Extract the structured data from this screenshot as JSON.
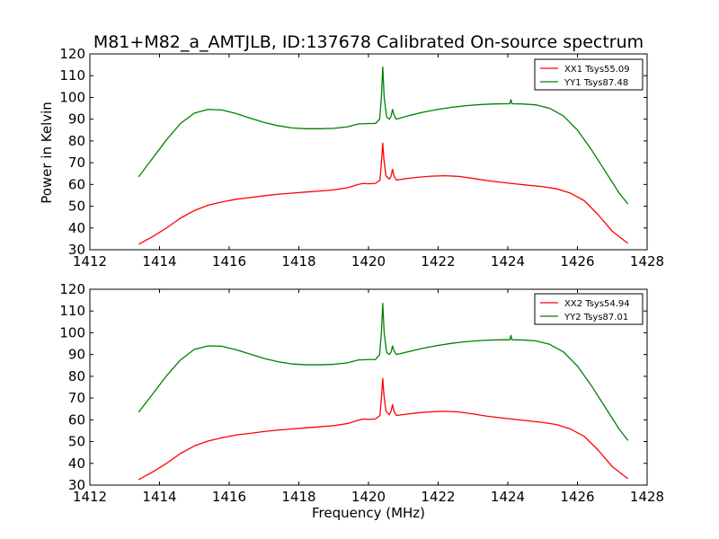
{
  "chart_data": {
    "type": "line",
    "title": "M81+M82_a_AMTJLB, ID:137678 Calibrated On-source spectrum",
    "xlabel": "Frequency (MHz)",
    "ylabel": "Power in Kelvin",
    "xlim": [
      1412,
      1428
    ],
    "xticks": [
      1412,
      1414,
      1416,
      1418,
      1420,
      1422,
      1424,
      1426,
      1428
    ],
    "panels": [
      {
        "ylim": [
          30,
          120
        ],
        "yticks": [
          30,
          40,
          50,
          60,
          70,
          80,
          90,
          100,
          110,
          120
        ],
        "legend_position": "top-right",
        "series": [
          {
            "name": "XX1 Tsys55.09",
            "color": "#ff0000",
            "points": [
              [
                1413.4,
                32.5
              ],
              [
                1413.8,
                36
              ],
              [
                1414.2,
                40
              ],
              [
                1414.6,
                44.5
              ],
              [
                1415.0,
                48
              ],
              [
                1415.4,
                50.5
              ],
              [
                1415.8,
                52
              ],
              [
                1416.2,
                53.2
              ],
              [
                1416.6,
                54
              ],
              [
                1417.0,
                54.8
              ],
              [
                1417.4,
                55.5
              ],
              [
                1417.8,
                56
              ],
              [
                1418.2,
                56.5
              ],
              [
                1418.6,
                57
              ],
              [
                1419.0,
                57.5
              ],
              [
                1419.4,
                58.5
              ],
              [
                1419.7,
                60
              ],
              [
                1419.85,
                60.5
              ],
              [
                1420.0,
                60.3
              ],
              [
                1420.2,
                60.5
              ],
              [
                1420.33,
                62
              ],
              [
                1420.38,
                72
              ],
              [
                1420.41,
                79
              ],
              [
                1420.44,
                72
              ],
              [
                1420.5,
                64
              ],
              [
                1420.6,
                62.5
              ],
              [
                1420.65,
                64
              ],
              [
                1420.69,
                67
              ],
              [
                1420.73,
                64
              ],
              [
                1420.8,
                62
              ],
              [
                1421.0,
                62.5
              ],
              [
                1421.4,
                63.3
              ],
              [
                1421.8,
                63.8
              ],
              [
                1422.2,
                64
              ],
              [
                1422.6,
                63.7
              ],
              [
                1423.0,
                62.8
              ],
              [
                1423.4,
                61.8
              ],
              [
                1423.8,
                61
              ],
              [
                1424.2,
                60.3
              ],
              [
                1424.6,
                59.6
              ],
              [
                1425.0,
                59
              ],
              [
                1425.4,
                58
              ],
              [
                1425.8,
                56
              ],
              [
                1426.2,
                52.5
              ],
              [
                1426.6,
                46
              ],
              [
                1427.0,
                38.5
              ],
              [
                1427.4,
                33.5
              ],
              [
                1427.45,
                33
              ]
            ]
          },
          {
            "name": "YY1 Tsys87.48",
            "color": "#008000",
            "points": [
              [
                1413.4,
                63.5
              ],
              [
                1413.8,
                72
              ],
              [
                1414.2,
                80.5
              ],
              [
                1414.6,
                88
              ],
              [
                1415.0,
                92.8
              ],
              [
                1415.4,
                94.5
              ],
              [
                1415.8,
                94.2
              ],
              [
                1416.2,
                92.6
              ],
              [
                1416.6,
                90.5
              ],
              [
                1417.0,
                88.5
              ],
              [
                1417.4,
                87
              ],
              [
                1417.8,
                86
              ],
              [
                1418.2,
                85.6
              ],
              [
                1418.6,
                85.6
              ],
              [
                1419.0,
                85.8
              ],
              [
                1419.4,
                86.5
              ],
              [
                1419.7,
                87.8
              ],
              [
                1420.0,
                88
              ],
              [
                1420.2,
                88
              ],
              [
                1420.32,
                90
              ],
              [
                1420.37,
                100
              ],
              [
                1420.41,
                114
              ],
              [
                1420.45,
                100
              ],
              [
                1420.52,
                91
              ],
              [
                1420.6,
                90
              ],
              [
                1420.65,
                91.5
              ],
              [
                1420.69,
                94.5
              ],
              [
                1420.73,
                92
              ],
              [
                1420.8,
                90
              ],
              [
                1421.2,
                91.8
              ],
              [
                1421.6,
                93.3
              ],
              [
                1422.0,
                94.5
              ],
              [
                1422.4,
                95.5
              ],
              [
                1422.8,
                96.2
              ],
              [
                1423.2,
                96.7
              ],
              [
                1423.6,
                97
              ],
              [
                1424.0,
                97.1
              ],
              [
                1424.06,
                97.1
              ],
              [
                1424.09,
                99
              ],
              [
                1424.12,
                97.1
              ],
              [
                1424.4,
                97
              ],
              [
                1424.8,
                96.6
              ],
              [
                1425.2,
                95
              ],
              [
                1425.6,
                91.5
              ],
              [
                1426.0,
                85
              ],
              [
                1426.4,
                76
              ],
              [
                1426.8,
                66
              ],
              [
                1427.2,
                56
              ],
              [
                1427.45,
                51
              ]
            ]
          }
        ]
      },
      {
        "ylim": [
          30,
          120
        ],
        "yticks": [
          30,
          40,
          50,
          60,
          70,
          80,
          90,
          100,
          110,
          120
        ],
        "legend_position": "top-right",
        "series": [
          {
            "name": "XX2 Tsys54.94",
            "color": "#ff0000",
            "points": [
              [
                1413.4,
                32.5
              ],
              [
                1413.8,
                36
              ],
              [
                1414.2,
                40
              ],
              [
                1414.6,
                44.5
              ],
              [
                1415.0,
                48
              ],
              [
                1415.4,
                50.3
              ],
              [
                1415.8,
                51.8
              ],
              [
                1416.2,
                53
              ],
              [
                1416.6,
                53.8
              ],
              [
                1417.0,
                54.6
              ],
              [
                1417.4,
                55.3
              ],
              [
                1417.8,
                55.8
              ],
              [
                1418.2,
                56.3
              ],
              [
                1418.6,
                56.8
              ],
              [
                1419.0,
                57.3
              ],
              [
                1419.4,
                58.3
              ],
              [
                1419.7,
                59.8
              ],
              [
                1419.85,
                60.4
              ],
              [
                1420.0,
                60.2
              ],
              [
                1420.2,
                60.4
              ],
              [
                1420.33,
                62
              ],
              [
                1420.38,
                72
              ],
              [
                1420.41,
                79
              ],
              [
                1420.44,
                72
              ],
              [
                1420.5,
                64
              ],
              [
                1420.6,
                62.3
              ],
              [
                1420.65,
                64
              ],
              [
                1420.69,
                67
              ],
              [
                1420.73,
                64
              ],
              [
                1420.8,
                62
              ],
              [
                1421.0,
                62.4
              ],
              [
                1421.4,
                63.2
              ],
              [
                1421.8,
                63.7
              ],
              [
                1422.2,
                63.9
              ],
              [
                1422.6,
                63.6
              ],
              [
                1423.0,
                62.7
              ],
              [
                1423.4,
                61.7
              ],
              [
                1423.8,
                60.9
              ],
              [
                1424.2,
                60.2
              ],
              [
                1424.6,
                59.5
              ],
              [
                1425.0,
                58.8
              ],
              [
                1425.4,
                57.8
              ],
              [
                1425.8,
                55.8
              ],
              [
                1426.2,
                52.3
              ],
              [
                1426.6,
                46
              ],
              [
                1427.0,
                38.5
              ],
              [
                1427.4,
                33.5
              ],
              [
                1427.45,
                33
              ]
            ]
          },
          {
            "name": "YY2 Tsys87.01",
            "color": "#008000",
            "points": [
              [
                1413.4,
                63.5
              ],
              [
                1413.8,
                71.8
              ],
              [
                1414.2,
                80.2
              ],
              [
                1414.6,
                87.5
              ],
              [
                1415.0,
                92.4
              ],
              [
                1415.4,
                94
              ],
              [
                1415.8,
                93.8
              ],
              [
                1416.2,
                92.2
              ],
              [
                1416.6,
                90.2
              ],
              [
                1417.0,
                88.2
              ],
              [
                1417.4,
                86.7
              ],
              [
                1417.8,
                85.7
              ],
              [
                1418.2,
                85.3
              ],
              [
                1418.6,
                85.3
              ],
              [
                1419.0,
                85.5
              ],
              [
                1419.4,
                86.2
              ],
              [
                1419.7,
                87.5
              ],
              [
                1420.0,
                87.7
              ],
              [
                1420.2,
                87.7
              ],
              [
                1420.32,
                90
              ],
              [
                1420.37,
                100
              ],
              [
                1420.41,
                113.5
              ],
              [
                1420.45,
                100
              ],
              [
                1420.52,
                91
              ],
              [
                1420.6,
                90
              ],
              [
                1420.65,
                91.2
              ],
              [
                1420.69,
                94
              ],
              [
                1420.73,
                91.8
              ],
              [
                1420.8,
                90
              ],
              [
                1421.2,
                91.5
              ],
              [
                1421.6,
                93
              ],
              [
                1422.0,
                94.2
              ],
              [
                1422.4,
                95.2
              ],
              [
                1422.8,
                95.9
              ],
              [
                1423.2,
                96.4
              ],
              [
                1423.6,
                96.7
              ],
              [
                1424.0,
                96.8
              ],
              [
                1424.06,
                96.8
              ],
              [
                1424.09,
                98.8
              ],
              [
                1424.12,
                96.8
              ],
              [
                1424.4,
                96.7
              ],
              [
                1424.8,
                96.3
              ],
              [
                1425.2,
                94.7
              ],
              [
                1425.6,
                91.2
              ],
              [
                1426.0,
                84.7
              ],
              [
                1426.4,
                75.7
              ],
              [
                1426.8,
                65.7
              ],
              [
                1427.2,
                55.7
              ],
              [
                1427.45,
                50.5
              ]
            ]
          }
        ]
      }
    ]
  }
}
